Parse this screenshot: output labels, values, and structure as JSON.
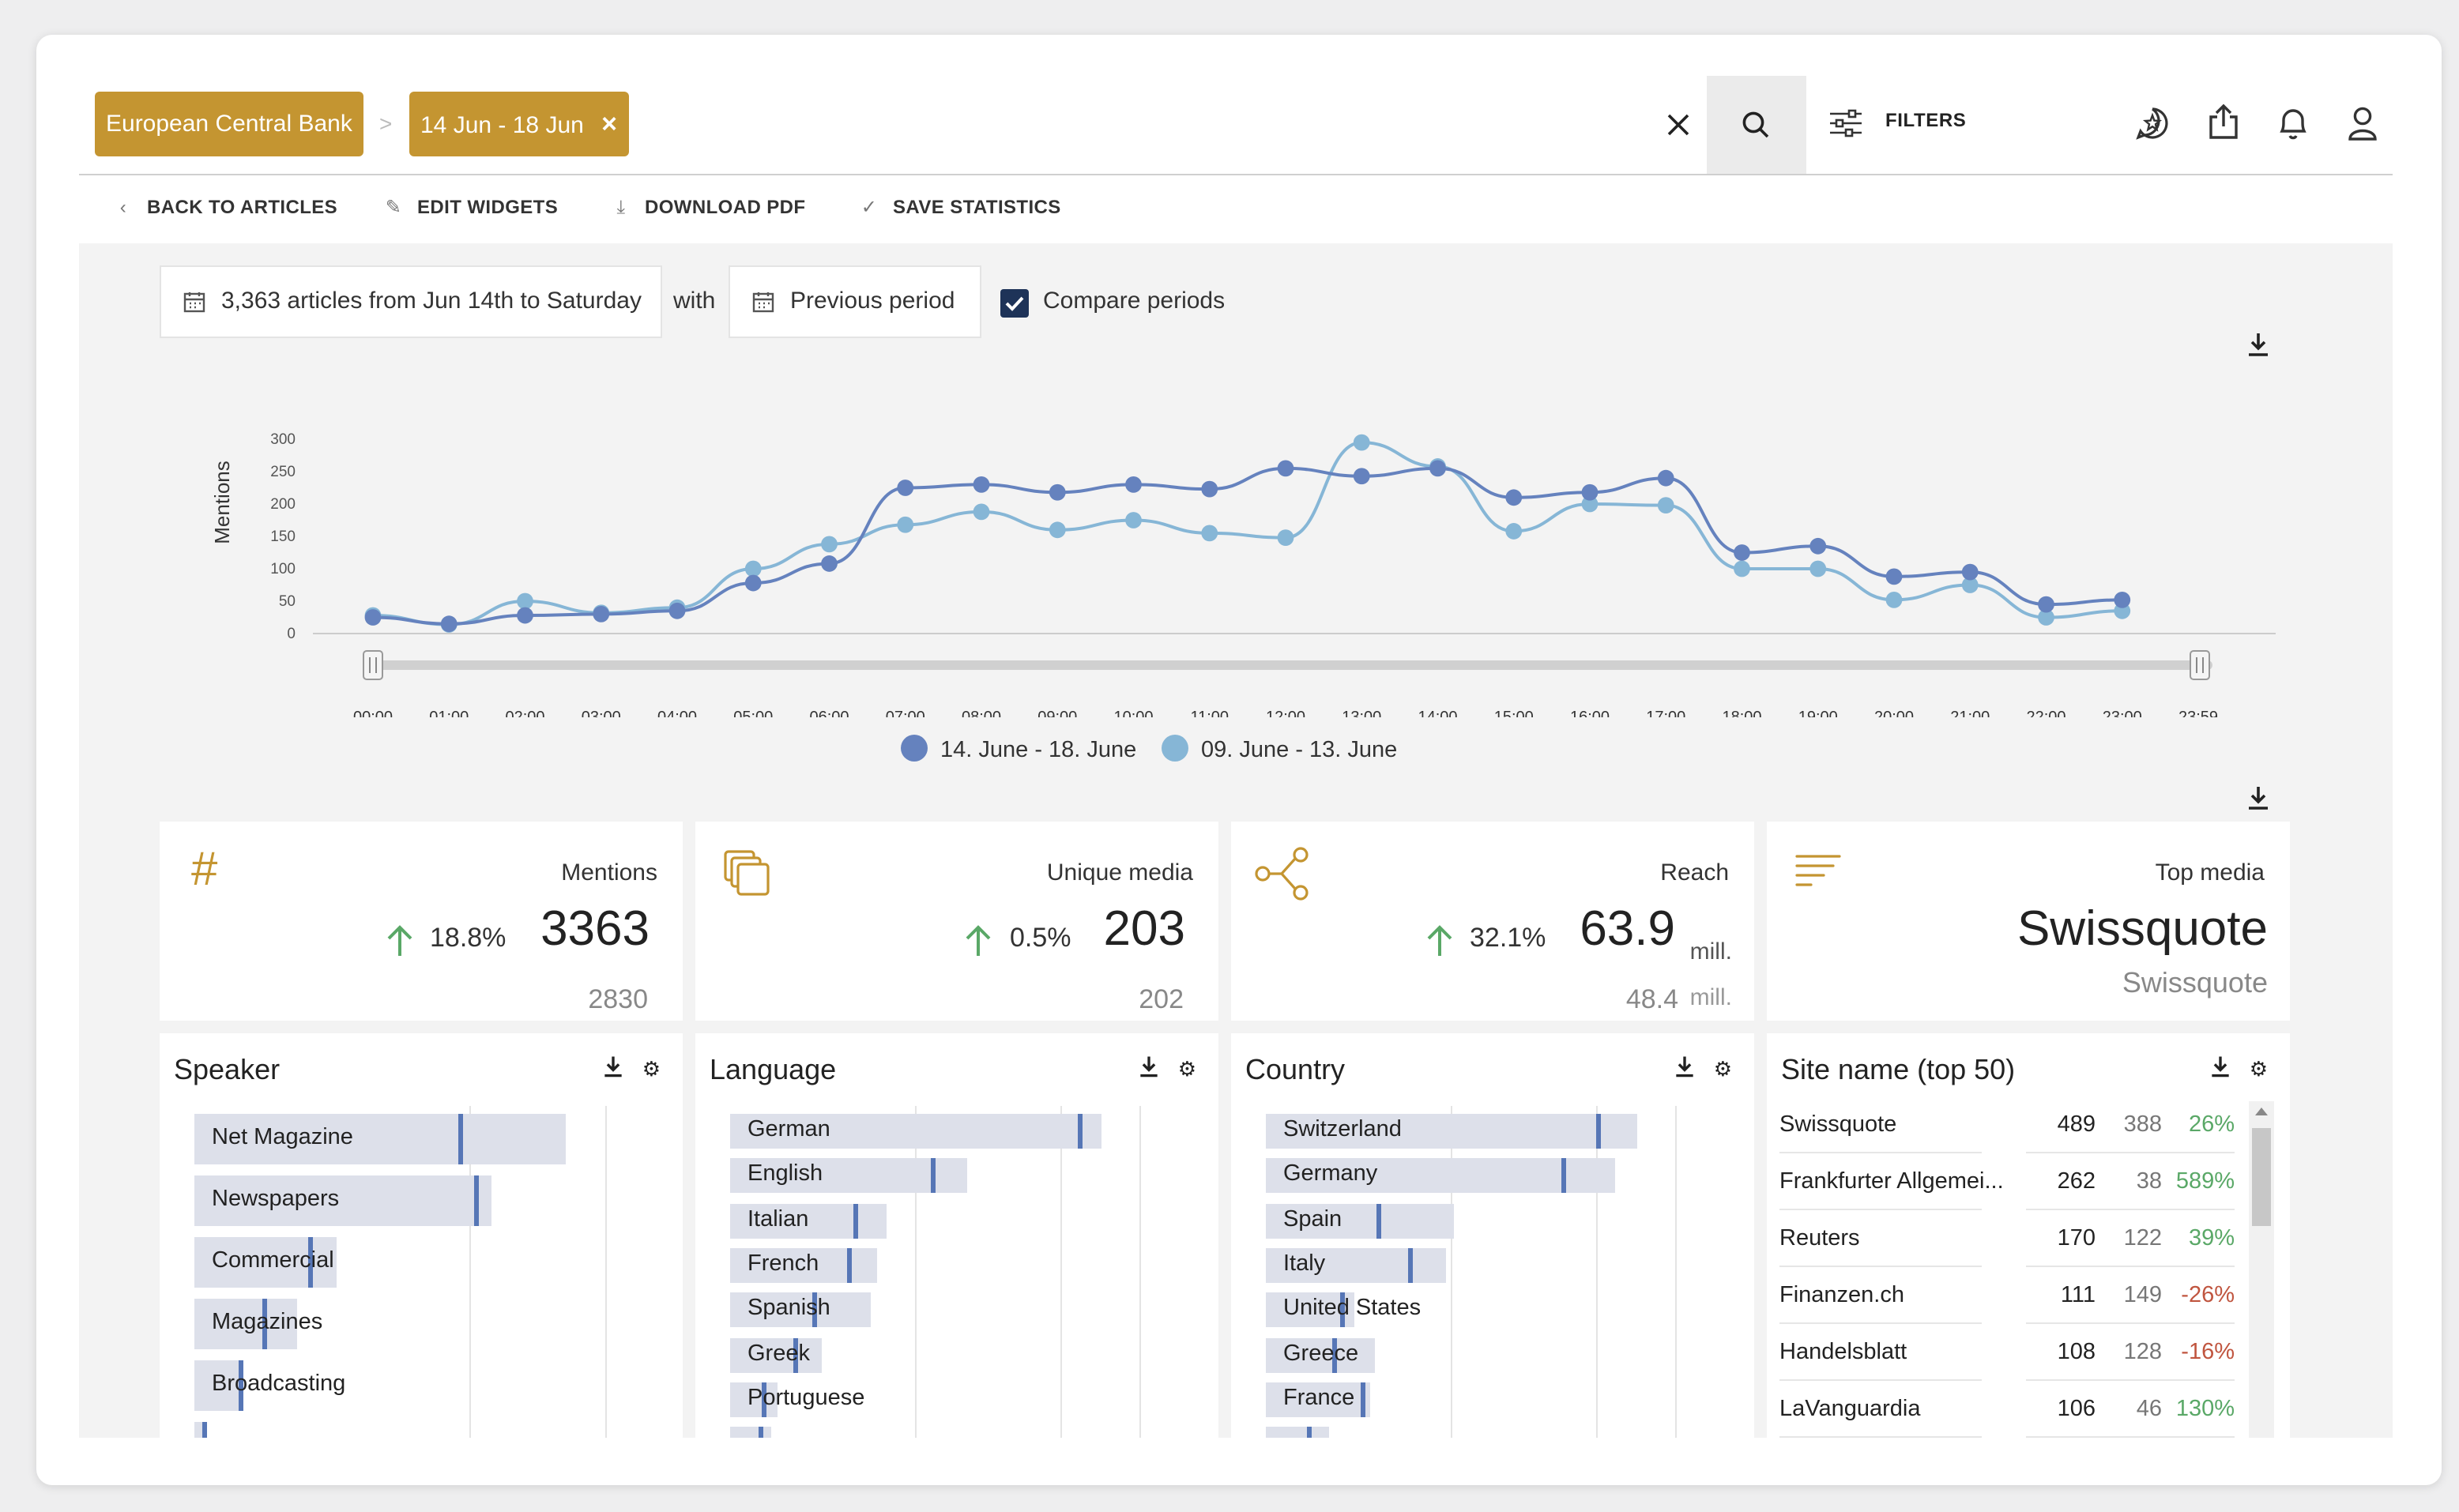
{
  "header": {
    "breadcrumb": [
      "European Central Bank",
      "14 Jun - 18 Jun"
    ],
    "chip_close": "×",
    "filters_label": "FILTERS"
  },
  "actions": {
    "back": "BACK TO ARTICLES",
    "edit": "EDIT WIDGETS",
    "download": "DOWNLOAD PDF",
    "save": "SAVE STATISTICS"
  },
  "period": {
    "current": "3,363 articles from Jun 14th to Saturday",
    "with": "with",
    "compare_to": "Previous period",
    "compare_label": "Compare periods",
    "compare_checked": true
  },
  "chart_data": {
    "type": "line",
    "ylabel": "Mentions",
    "ylim": [
      0,
      300
    ],
    "yticks": [
      0,
      50,
      100,
      150,
      200,
      250,
      300
    ],
    "x": [
      "00:00",
      "01:00",
      "02:00",
      "03:00",
      "04:00",
      "05:00",
      "06:00",
      "07:00",
      "08:00",
      "09:00",
      "10:00",
      "11:00",
      "12:00",
      "13:00",
      "14:00",
      "15:00",
      "16:00",
      "17:00",
      "18:00",
      "19:00",
      "20:00",
      "21:00",
      "22:00",
      "23:00"
    ],
    "range_end_label": "23:59",
    "series": [
      {
        "name": "14. June - 18. June",
        "color": "#6582be",
        "values": [
          25,
          15,
          28,
          30,
          35,
          78,
          108,
          225,
          230,
          218,
          230,
          223,
          255,
          243,
          255,
          210,
          218,
          240,
          125,
          135,
          88,
          95,
          45,
          52
        ]
      },
      {
        "name": "09. June - 13. June",
        "color": "#86b6d6",
        "values": [
          28,
          14,
          50,
          32,
          40,
          100,
          138,
          168,
          188,
          160,
          175,
          155,
          148,
          295,
          258,
          158,
          200,
          198,
          100,
          100,
          52,
          75,
          25,
          35
        ]
      }
    ],
    "legend_position": "bottom-center"
  },
  "stats": [
    {
      "title": "Mentions",
      "change": "18.8%",
      "value": "3363",
      "previous": "2830",
      "unit": "",
      "icon": "hash-icon"
    },
    {
      "title": "Unique media",
      "change": "0.5%",
      "value": "203",
      "previous": "202",
      "unit": "",
      "icon": "copy-icon"
    },
    {
      "title": "Reach",
      "change": "32.1%",
      "value": "63.9",
      "previous": "48.4",
      "unit": "mill.",
      "icon": "share-icon"
    },
    {
      "title": "Top media",
      "value": "Swissquote",
      "sub": "Swissquote",
      "icon": "lines-icon"
    }
  ],
  "panels": {
    "speaker": {
      "title": "Speaker",
      "items": [
        {
          "label": "Net Magazine",
          "value": 235,
          "previous": 167
        },
        {
          "label": "Newspapers",
          "value": 188,
          "previous": 177
        },
        {
          "label": "Commercial",
          "value": 90,
          "previous": 72
        },
        {
          "label": "Magazines",
          "value": 65,
          "previous": 43
        },
        {
          "label": "Broadcasting",
          "value": 30,
          "previous": 28
        },
        {
          "label": "",
          "value": 6,
          "previous": 5
        }
      ]
    },
    "language": {
      "title": "Language",
      "items": [
        {
          "label": "German",
          "value": 235,
          "previous": 220
        },
        {
          "label": "English",
          "value": 150,
          "previous": 127
        },
        {
          "label": "Italian",
          "value": 99,
          "previous": 78
        },
        {
          "label": "French",
          "value": 93,
          "previous": 74
        },
        {
          "label": "Spanish",
          "value": 89,
          "previous": 52
        },
        {
          "label": "Greek",
          "value": 58,
          "previous": 40
        },
        {
          "label": "Portuguese",
          "value": 30,
          "previous": 20
        },
        {
          "label": "",
          "value": 26,
          "previous": 18
        }
      ]
    },
    "country": {
      "title": "Country",
      "items": [
        {
          "label": "Switzerland",
          "value": 235,
          "previous": 209
        },
        {
          "label": "Germany",
          "value": 221,
          "previous": 187
        },
        {
          "label": "Spain",
          "value": 119,
          "previous": 70
        },
        {
          "label": "Italy",
          "value": 114,
          "previous": 90
        },
        {
          "label": "United States",
          "value": 56,
          "previous": 47
        },
        {
          "label": "Greece",
          "value": 69,
          "previous": 42
        },
        {
          "label": "France",
          "value": 66,
          "previous": 60
        },
        {
          "label": "",
          "value": 40,
          "previous": 26
        }
      ]
    },
    "sites": {
      "title": "Site name (top 50)",
      "rows": [
        {
          "name": "Swissquote",
          "current": "489",
          "previous": "388",
          "change": "26%",
          "trend": "up"
        },
        {
          "name": "Frankfurter Allgemei...",
          "current": "262",
          "previous": "38",
          "change": "589%",
          "trend": "up"
        },
        {
          "name": "Reuters",
          "current": "170",
          "previous": "122",
          "change": "39%",
          "trend": "up"
        },
        {
          "name": "Finanzen.ch",
          "current": "111",
          "previous": "149",
          "change": "-26%",
          "trend": "down"
        },
        {
          "name": "Handelsblatt",
          "current": "108",
          "previous": "128",
          "change": "-16%",
          "trend": "down"
        },
        {
          "name": "LaVanguardia",
          "current": "106",
          "previous": "46",
          "change": "130%",
          "trend": "up"
        }
      ]
    }
  },
  "colors": {
    "accent": "#c49531",
    "series_current": "#6582be",
    "series_previous": "#86b6d6",
    "positive": "#5aa867",
    "negative": "#c0553f",
    "checkbox": "#1e3358"
  }
}
